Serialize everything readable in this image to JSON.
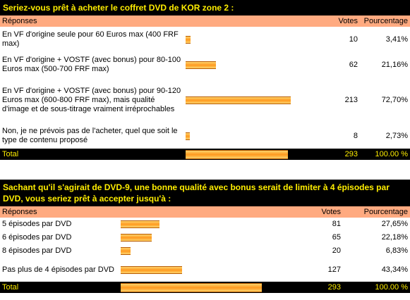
{
  "poll1": {
    "title": "Seriez-vous prêt à acheter le coffret DVD de KOR zone 2 :",
    "headers": {
      "answers": "Réponses",
      "votes": "Votes",
      "percent": "Pourcentage"
    },
    "rows": [
      {
        "label": "En VF d'origine seule pour 60 Euros max (400 FRF max)",
        "votes": "10",
        "percent": "3,41%",
        "share": 0.0341
      },
      {
        "label": "En VF d'origine + VOSTF (avec bonus) pour 80-100 Euros max (500-700 FRF max)",
        "votes": "62",
        "percent": "21,16%",
        "share": 0.2116
      },
      {
        "label": "En VF d'origine + VOSTF (avec bonus) pour 90-120 Euros max (600-800 FRF max), mais qualité d'image et de sous-titrage vraiment irréprochables",
        "votes": "213",
        "percent": "72,70%",
        "share": 0.727
      },
      {
        "label": "Non, je ne prévois pas de l'acheter, quel que soit le type de contenu proposé",
        "votes": "8",
        "percent": "2,73%",
        "share": 0.0273
      }
    ],
    "total": {
      "label": "Total",
      "votes": "293",
      "percent": "100.00 %",
      "share": 1.0
    }
  },
  "poll2": {
    "title": "Sachant qu'il s'agirait de DVD-9, une bonne qualité avec bonus serait de limiter à 4 épisodes par DVD, vous seriez prêt à accepter jusqu'à :",
    "headers": {
      "answers": "Réponses",
      "votes": "Votes",
      "percent": "Pourcentage"
    },
    "rows": [
      {
        "label": "5 épisodes par DVD",
        "votes": "81",
        "percent": "27,65%",
        "share": 0.2765
      },
      {
        "label": "6 épisodes par DVD",
        "votes": "65",
        "percent": "22,18%",
        "share": 0.2218
      },
      {
        "label": "8 épisodes par DVD",
        "votes": "20",
        "percent": "6,83%",
        "share": 0.0683
      },
      {
        "label": "Pas plus de 4 épisodes par DVD",
        "votes": "127",
        "percent": "43,34%",
        "share": 0.4334
      }
    ],
    "total": {
      "label": "Total",
      "votes": "293",
      "percent": "100.00 %",
      "share": 1.0
    }
  },
  "colors": {
    "title_bg": "#000000",
    "title_text": "#ffee00",
    "header_bg": "#ffaa80",
    "bar": "#ff9a1f"
  }
}
